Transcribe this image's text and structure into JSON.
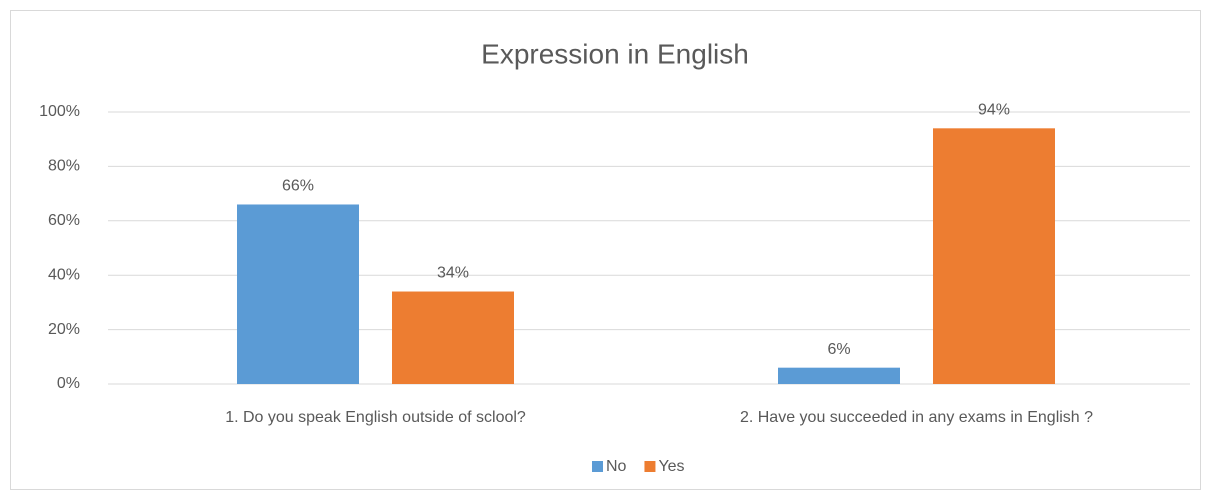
{
  "chart_data": {
    "type": "bar",
    "title": "Expression in English",
    "categories": [
      "1. Do you speak English outside of sclool?",
      "2. Have you succeeded in any exams in English ?"
    ],
    "series": [
      {
        "name": "No",
        "color": "#5b9bd5",
        "values": [
          66,
          6
        ],
        "value_labels": [
          "66%",
          "6%"
        ]
      },
      {
        "name": "Yes",
        "color": "#ed7d31",
        "values": [
          34,
          94
        ],
        "value_labels": [
          "34%",
          "94%"
        ]
      }
    ],
    "ylim": [
      0,
      100
    ],
    "yticks": [
      {
        "value": 0,
        "label": "0%"
      },
      {
        "value": 20,
        "label": "20%"
      },
      {
        "value": 40,
        "label": "40%"
      },
      {
        "value": 60,
        "label": "60%"
      },
      {
        "value": 80,
        "label": "80%"
      },
      {
        "value": 100,
        "label": "100%"
      }
    ],
    "grid": true,
    "legend": "bottom"
  }
}
